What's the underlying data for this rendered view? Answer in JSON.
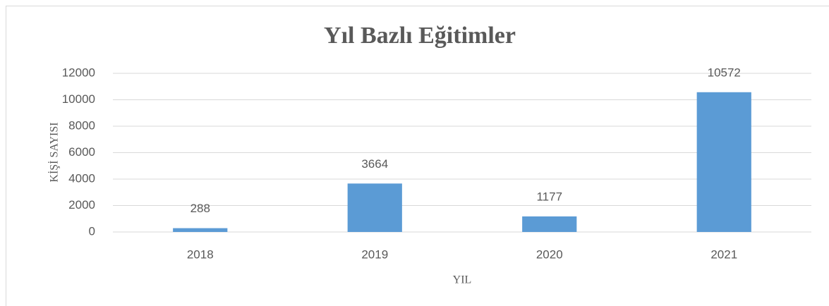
{
  "chart_data": {
    "type": "bar",
    "title": "Yıl Bazlı Eğitimler",
    "x_label": "YIL",
    "y_label": "KİŞİ SAYISI",
    "categories": [
      "2018",
      "2019",
      "2020",
      "2021"
    ],
    "values": [
      288,
      3664,
      1177,
      10572
    ],
    "color": "#5b9bd5",
    "data_labels": true,
    "ylim": [
      0,
      12000
    ],
    "yticks": [
      0,
      2000,
      4000,
      6000,
      8000,
      10000,
      12000
    ],
    "grid": true
  }
}
